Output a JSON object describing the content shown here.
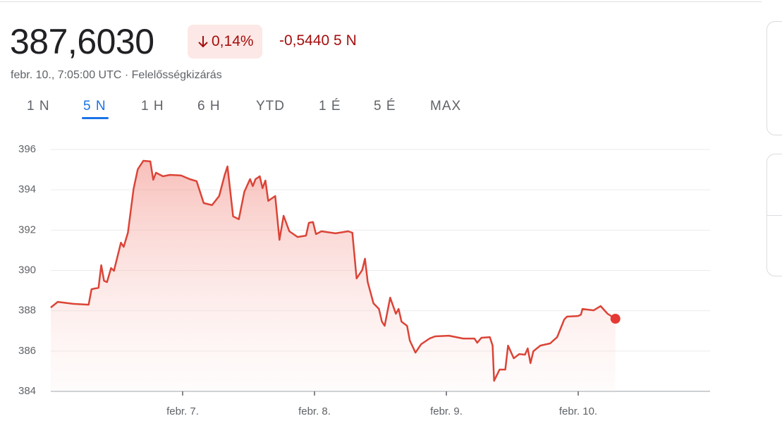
{
  "header": {
    "price": "387,6030",
    "change_percent": "0,14%",
    "change_abs": "-0,5440 5 N",
    "timestamp": "febr. 10., 7:05:00 UTC · Felelősségkizárás"
  },
  "tabs": {
    "items": [
      "1 N",
      "5 N",
      "1 H",
      "6 H",
      "YTD",
      "1 É",
      "5 É",
      "MAX"
    ],
    "selected": 1
  },
  "chart_data": {
    "type": "line",
    "color": "#db4437",
    "grid": true,
    "xlim": [
      6,
      11
    ],
    "xticks": [
      {
        "value": 7,
        "label": "febr. 7."
      },
      {
        "value": 8,
        "label": "febr. 8."
      },
      {
        "value": 9,
        "label": "febr. 9."
      },
      {
        "value": 10,
        "label": "febr. 10."
      }
    ],
    "ylim": [
      384,
      396
    ],
    "yticks": [
      384,
      386,
      388,
      390,
      392,
      394,
      396
    ],
    "x": [
      6.0,
      6.053,
      6.17,
      6.287,
      6.309,
      6.362,
      6.383,
      6.404,
      6.426,
      6.457,
      6.479,
      6.532,
      6.553,
      6.585,
      6.628,
      6.66,
      6.702,
      6.755,
      6.777,
      6.798,
      6.851,
      6.904,
      6.989,
      7.053,
      7.106,
      7.16,
      7.223,
      7.277,
      7.319,
      7.34,
      7.383,
      7.426,
      7.468,
      7.511,
      7.532,
      7.553,
      7.585,
      7.606,
      7.628,
      7.649,
      7.702,
      7.734,
      7.766,
      7.809,
      7.872,
      7.936,
      7.957,
      7.989,
      8.011,
      8.053,
      8.16,
      8.255,
      8.287,
      8.319,
      8.362,
      8.383,
      8.404,
      8.447,
      8.489,
      8.511,
      8.532,
      8.574,
      8.617,
      8.638,
      8.66,
      8.702,
      8.723,
      8.766,
      8.809,
      8.872,
      8.915,
      9.021,
      9.128,
      9.213,
      9.234,
      9.266,
      9.33,
      9.351,
      9.362,
      9.404,
      9.447,
      9.468,
      9.511,
      9.553,
      9.596,
      9.617,
      9.638,
      9.66,
      9.713,
      9.787,
      9.84,
      9.894,
      9.915,
      10.0,
      10.021,
      10.032,
      10.117,
      10.17,
      10.223,
      10.282
    ],
    "values": [
      388.16,
      388.44,
      388.34,
      388.3,
      389.07,
      389.14,
      390.26,
      389.49,
      389.42,
      390.12,
      389.98,
      391.38,
      391.17,
      391.87,
      394.04,
      395.02,
      395.44,
      395.41,
      394.5,
      394.85,
      394.67,
      394.74,
      394.71,
      394.53,
      394.43,
      393.34,
      393.24,
      393.69,
      394.74,
      395.16,
      392.68,
      392.54,
      393.9,
      394.53,
      394.18,
      394.53,
      394.67,
      394.08,
      394.46,
      393.45,
      393.69,
      391.52,
      392.71,
      391.94,
      391.66,
      391.73,
      392.36,
      392.4,
      391.8,
      391.94,
      391.84,
      391.94,
      391.87,
      389.6,
      390.02,
      390.58,
      389.42,
      388.37,
      388.09,
      387.46,
      387.25,
      388.65,
      387.85,
      388.09,
      387.46,
      387.25,
      386.52,
      385.92,
      386.34,
      386.62,
      386.73,
      386.76,
      386.62,
      386.62,
      386.41,
      386.66,
      386.69,
      386.27,
      384.52,
      385.08,
      385.08,
      386.27,
      385.64,
      385.85,
      385.82,
      386.13,
      385.4,
      385.99,
      386.27,
      386.38,
      386.69,
      387.57,
      387.71,
      387.74,
      387.81,
      388.09,
      388.02,
      388.23,
      387.85,
      387.603
    ]
  }
}
